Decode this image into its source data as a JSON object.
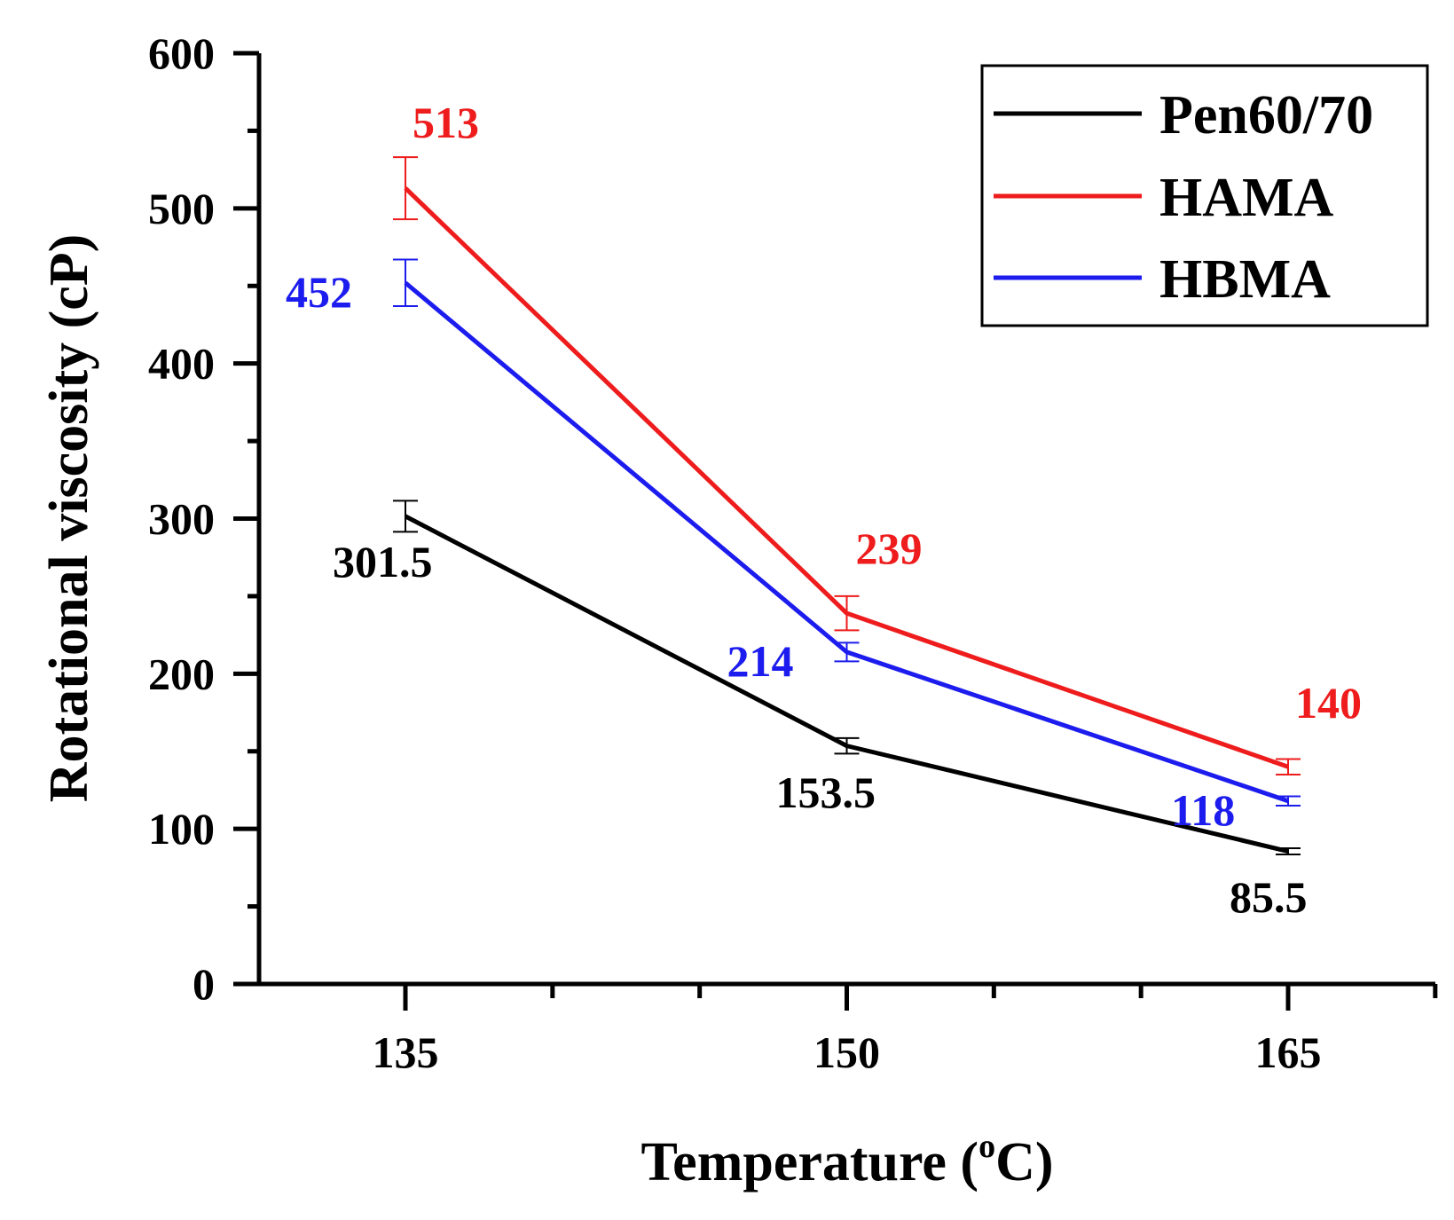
{
  "chart_data": {
    "type": "line",
    "x": [
      135,
      150,
      165
    ],
    "xlabel": "Temperature (",
    "xlabel_superscript": "o",
    "xlabel_suffix": "C)",
    "ylabel": "Rotational viscosity (cP)",
    "xlim": [
      129,
      170
    ],
    "ylim": [
      0,
      600
    ],
    "yticks": [
      "0",
      "100",
      "200",
      "300",
      "400",
      "500",
      "600"
    ],
    "xticks": [
      "135",
      "150",
      "165"
    ],
    "legend_position": "top-right",
    "series": [
      {
        "name": "Pen60/70",
        "color": "#000000",
        "values": [
          301.5,
          153.5,
          85.5
        ],
        "errors": [
          10,
          5,
          2
        ],
        "labels": [
          "301.5",
          "153.5",
          "85.5"
        ]
      },
      {
        "name": "HAMA",
        "color": "#ee1c1c",
        "values": [
          513,
          239,
          140
        ],
        "errors": [
          20,
          11,
          5
        ],
        "labels": [
          "513",
          "239",
          "140"
        ]
      },
      {
        "name": "HBMA",
        "color": "#1c1cee",
        "values": [
          452,
          214,
          118
        ],
        "errors": [
          15,
          6,
          3
        ],
        "labels": [
          "452",
          "214",
          "118"
        ]
      }
    ]
  }
}
